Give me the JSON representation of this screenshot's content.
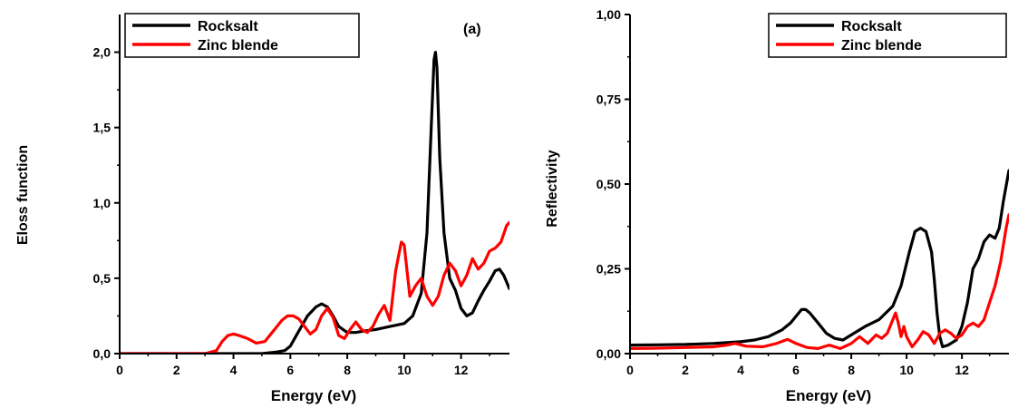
{
  "chart_data": [
    {
      "type": "line",
      "panel_label": "(a)",
      "xlabel": "Energy (eV)",
      "ylabel": "Eloss function",
      "xlim": [
        0,
        13.7
      ],
      "ylim": [
        0,
        2.25
      ],
      "x_ticks": [
        0,
        2,
        4,
        6,
        8,
        10,
        12
      ],
      "x_tick_labels": [
        "0",
        "2",
        "4",
        "6",
        "8",
        "10",
        "12"
      ],
      "y_ticks": [
        0,
        0.5,
        1.0,
        1.5,
        2.0
      ],
      "y_tick_labels": [
        "0,0",
        "0,5",
        "1,0",
        "1,5",
        "2,0"
      ],
      "legend_position": "top-left",
      "series": [
        {
          "name": "Rocksalt",
          "color": "#000000",
          "x": [
            0,
            2,
            4,
            5.0,
            5.5,
            5.8,
            6.0,
            6.3,
            6.6,
            6.9,
            7.1,
            7.3,
            7.5,
            7.7,
            8.0,
            8.3,
            8.6,
            9.0,
            9.5,
            10.0,
            10.3,
            10.6,
            10.8,
            10.95,
            11.05,
            11.1,
            11.15,
            11.25,
            11.4,
            11.6,
            11.8,
            12.0,
            12.2,
            12.4,
            12.6,
            12.8,
            13.0,
            13.2,
            13.35,
            13.5,
            13.7
          ],
          "y": [
            0,
            0,
            0,
            0,
            0.01,
            0.02,
            0.05,
            0.15,
            0.25,
            0.31,
            0.33,
            0.31,
            0.25,
            0.18,
            0.14,
            0.14,
            0.15,
            0.16,
            0.18,
            0.2,
            0.25,
            0.4,
            0.8,
            1.5,
            1.95,
            2.0,
            1.9,
            1.3,
            0.8,
            0.5,
            0.42,
            0.3,
            0.25,
            0.27,
            0.35,
            0.42,
            0.48,
            0.55,
            0.56,
            0.52,
            0.43
          ]
        },
        {
          "name": "Zinc blende",
          "color": "#ff0000",
          "x": [
            0,
            1,
            2,
            3.0,
            3.4,
            3.6,
            3.8,
            4.0,
            4.2,
            4.5,
            4.8,
            5.1,
            5.4,
            5.7,
            5.9,
            6.1,
            6.3,
            6.5,
            6.7,
            6.9,
            7.1,
            7.3,
            7.5,
            7.7,
            7.9,
            8.1,
            8.3,
            8.5,
            8.7,
            8.9,
            9.1,
            9.3,
            9.5,
            9.7,
            9.9,
            10.0,
            10.2,
            10.4,
            10.6,
            10.8,
            11.0,
            11.2,
            11.4,
            11.6,
            11.8,
            12.0,
            12.2,
            12.4,
            12.6,
            12.8,
            13.0,
            13.2,
            13.4,
            13.6,
            13.7
          ],
          "y": [
            0,
            0,
            0,
            0,
            0.02,
            0.08,
            0.12,
            0.13,
            0.12,
            0.1,
            0.07,
            0.08,
            0.15,
            0.22,
            0.25,
            0.25,
            0.23,
            0.18,
            0.13,
            0.16,
            0.25,
            0.3,
            0.24,
            0.12,
            0.1,
            0.16,
            0.21,
            0.16,
            0.14,
            0.18,
            0.26,
            0.32,
            0.22,
            0.55,
            0.74,
            0.72,
            0.38,
            0.45,
            0.5,
            0.38,
            0.32,
            0.38,
            0.52,
            0.6,
            0.55,
            0.45,
            0.52,
            0.63,
            0.56,
            0.6,
            0.68,
            0.7,
            0.74,
            0.85,
            0.87
          ]
        }
      ]
    },
    {
      "type": "line",
      "xlabel": "Energy (eV)",
      "ylabel": "Reflectivity",
      "xlim": [
        0,
        13.7
      ],
      "ylim": [
        0,
        1.0
      ],
      "x_ticks": [
        0,
        2,
        4,
        6,
        8,
        10,
        12
      ],
      "x_tick_labels": [
        "0",
        "2",
        "4",
        "6",
        "8",
        "10",
        "12"
      ],
      "y_ticks": [
        0,
        0.25,
        0.5,
        0.75,
        1.0
      ],
      "y_tick_labels": [
        "0,00",
        "0,25",
        "0,50",
        "0,75",
        "1,00"
      ],
      "legend_position": "top-right",
      "series": [
        {
          "name": "Rocksalt",
          "color": "#000000",
          "x": [
            0,
            1,
            2,
            3,
            4,
            4.5,
            5.0,
            5.5,
            5.8,
            6.0,
            6.2,
            6.35,
            6.5,
            6.8,
            7.1,
            7.4,
            7.7,
            8.0,
            8.5,
            9.0,
            9.5,
            9.8,
            10.1,
            10.3,
            10.5,
            10.7,
            10.9,
            11.0,
            11.1,
            11.2,
            11.3,
            11.5,
            11.8,
            12.0,
            12.2,
            12.4,
            12.6,
            12.8,
            13.0,
            13.2,
            13.35,
            13.5,
            13.7
          ],
          "y": [
            0.025,
            0.026,
            0.027,
            0.03,
            0.035,
            0.04,
            0.05,
            0.07,
            0.09,
            0.11,
            0.13,
            0.13,
            0.12,
            0.09,
            0.06,
            0.045,
            0.04,
            0.055,
            0.08,
            0.1,
            0.14,
            0.2,
            0.3,
            0.36,
            0.37,
            0.36,
            0.3,
            0.22,
            0.12,
            0.05,
            0.02,
            0.025,
            0.04,
            0.08,
            0.15,
            0.25,
            0.28,
            0.33,
            0.35,
            0.34,
            0.37,
            0.45,
            0.54
          ]
        },
        {
          "name": "Zinc blende",
          "color": "#ff0000",
          "x": [
            0,
            1,
            2,
            3,
            3.5,
            3.8,
            4.2,
            4.8,
            5.3,
            5.7,
            6.0,
            6.4,
            6.8,
            7.2,
            7.6,
            8.0,
            8.3,
            8.6,
            8.9,
            9.1,
            9.3,
            9.5,
            9.6,
            9.7,
            9.8,
            9.9,
            10.0,
            10.2,
            10.4,
            10.6,
            10.8,
            11.0,
            11.2,
            11.4,
            11.6,
            11.8,
            12.0,
            12.2,
            12.4,
            12.6,
            12.8,
            13.0,
            13.2,
            13.4,
            13.6,
            13.7
          ],
          "y": [
            0.015,
            0.016,
            0.018,
            0.02,
            0.025,
            0.03,
            0.022,
            0.02,
            0.03,
            0.042,
            0.03,
            0.018,
            0.015,
            0.025,
            0.015,
            0.03,
            0.05,
            0.03,
            0.055,
            0.045,
            0.06,
            0.1,
            0.12,
            0.09,
            0.05,
            0.08,
            0.05,
            0.02,
            0.04,
            0.065,
            0.055,
            0.03,
            0.06,
            0.07,
            0.06,
            0.045,
            0.055,
            0.08,
            0.09,
            0.08,
            0.1,
            0.15,
            0.2,
            0.27,
            0.37,
            0.41
          ]
        }
      ]
    }
  ]
}
